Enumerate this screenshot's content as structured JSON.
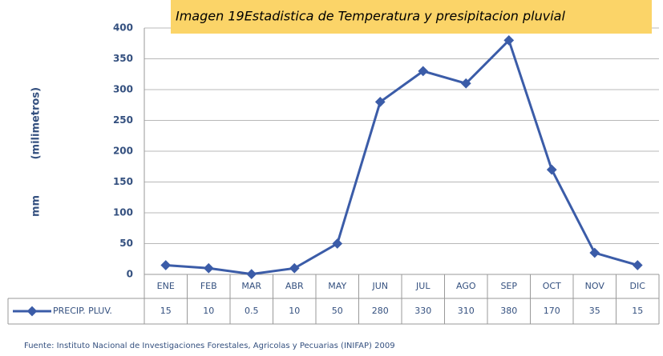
{
  "chart_data": {
    "type": "line",
    "title": "Imagen 19Estadistica de Temperatura y presipitacion pluvial",
    "y_label": "mm (milimetros)",
    "source": "Fuente: Instituto Nacional de Investigaciones Forestales, Agricolas y Pecuarias (INIFAP) 2009",
    "categories": [
      "ENE",
      "FEB",
      "MAR",
      "ABR",
      "MAY",
      "JUN",
      "JUL",
      "AGO",
      "SEP",
      "OCT",
      "NOV",
      "DIC"
    ],
    "series": [
      {
        "name": "PRECIP. PLUV.",
        "color": "#3b5ca8",
        "values": [
          15,
          10,
          0.5,
          10,
          50,
          280,
          330,
          310,
          380,
          170,
          35,
          15
        ]
      }
    ],
    "ylim": [
      0,
      400
    ],
    "yticks": [
      0,
      50,
      100,
      150,
      200,
      250,
      300,
      350,
      400
    ],
    "grid": true
  }
}
